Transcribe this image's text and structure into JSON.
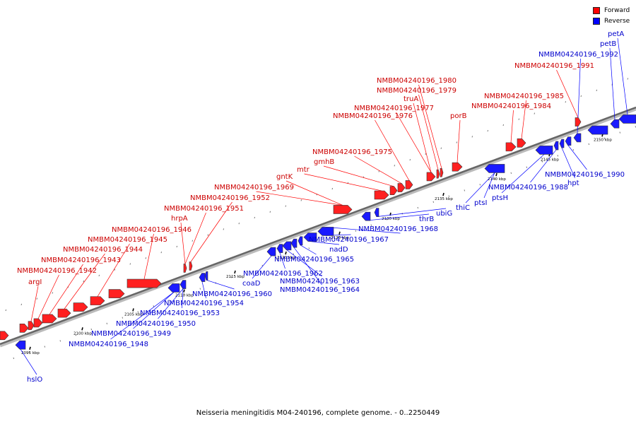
{
  "legend": {
    "forward_label": "Forward",
    "reverse_label": "Reverse",
    "forward_color": "#ff0000",
    "reverse_color": "#0000ff"
  },
  "caption": "Neisseria meningitidis M04-240196, complete genome. - 0..2250449",
  "scale_labels": [
    "2095 kbp",
    "2100 kbp",
    "2105 kbp",
    "2110 kbp",
    "2115 kbp",
    "2120 kbp",
    "2125 kbp",
    "2130 kbp",
    "2135 kbp",
    "2140 kbp",
    "2145 kbp",
    "2150 kbp"
  ],
  "forward_genes": [
    "argI",
    "NMBM04240196_1942",
    "NMBM04240196_1943",
    "NMBM04240196_1944",
    "NMBM04240196_1945",
    "NMBM04240196_1946",
    "hrpA",
    "NMBM04240196_1951",
    "NMBM04240196_1952",
    "NMBM04240196_1969",
    "gntK",
    "mtr",
    "gmhB",
    "NMBM04240196_1975",
    "NMBM04240196_1976",
    "NMBM04240196_1977",
    "truA",
    "NMBM04240196_1979",
    "NMBM04240196_1980",
    "porB",
    "NMBM04240196_1984",
    "NMBM04240196_1985",
    "NMBM04240196_1991"
  ],
  "reverse_genes": [
    "hslO",
    "NMBM04240196_1948",
    "NMBM04240196_1949",
    "NMBM04240196_1950",
    "NMBM04240196_1953",
    "NMBM04240196_1954",
    "NMBM04240196_1960",
    "coaD",
    "NMBM04240196_1962",
    "NMBM04240196_1963",
    "NMBM04240196_1964",
    "NMBM04240196_1965",
    "nadD",
    "NMBM04240196_1967",
    "NMBM04240196_1968",
    "thrB",
    "ubiG",
    "thiC",
    "ptsI",
    "ptsH",
    "NMBM04240196_1988",
    "hpt",
    "NMBM04240196_1990",
    "NMBM04240196_1992",
    "petB",
    "petA"
  ]
}
